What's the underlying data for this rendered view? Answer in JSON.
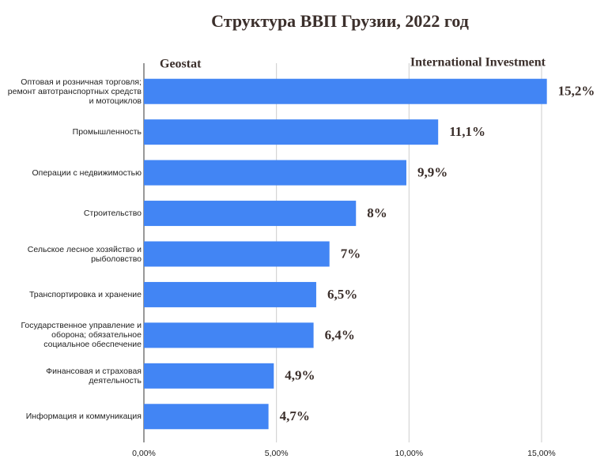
{
  "chart_data": {
    "type": "bar",
    "orientation": "horizontal",
    "title": "Структура ВВП Грузии, 2022 год",
    "annotations": [
      "Geostat",
      "International Investment"
    ],
    "categories": [
      "Оптовая и розничная торговля; ремонт автотранспортных средств и мотоциклов",
      "Промышленность",
      "Операции с недвижимостью",
      "Строительство",
      "Сельское лесное хозяйство и рыболовство",
      "Транспортировка и хранение",
      "Государственное управление и оборона; обязательное социальное обеспечение",
      "Финансовая и страховая деятельность",
      "Информация и коммуникация"
    ],
    "values": [
      15.2,
      11.1,
      9.9,
      8,
      7,
      6.5,
      6.4,
      4.9,
      4.7
    ],
    "value_labels": [
      "15,2%",
      "11,1%",
      "9,9%",
      "8%",
      "7%",
      "6,5%",
      "6,4%",
      "4,9%",
      "4,7%"
    ],
    "color": "#4285f4",
    "xlim": [
      0,
      16
    ],
    "xticks": [
      {
        "value": 0,
        "label": "0,00%"
      },
      {
        "value": 5,
        "label": "5,00%"
      },
      {
        "value": 10,
        "label": "10,00%"
      },
      {
        "value": 15,
        "label": "15,00%"
      }
    ],
    "grid": true
  }
}
